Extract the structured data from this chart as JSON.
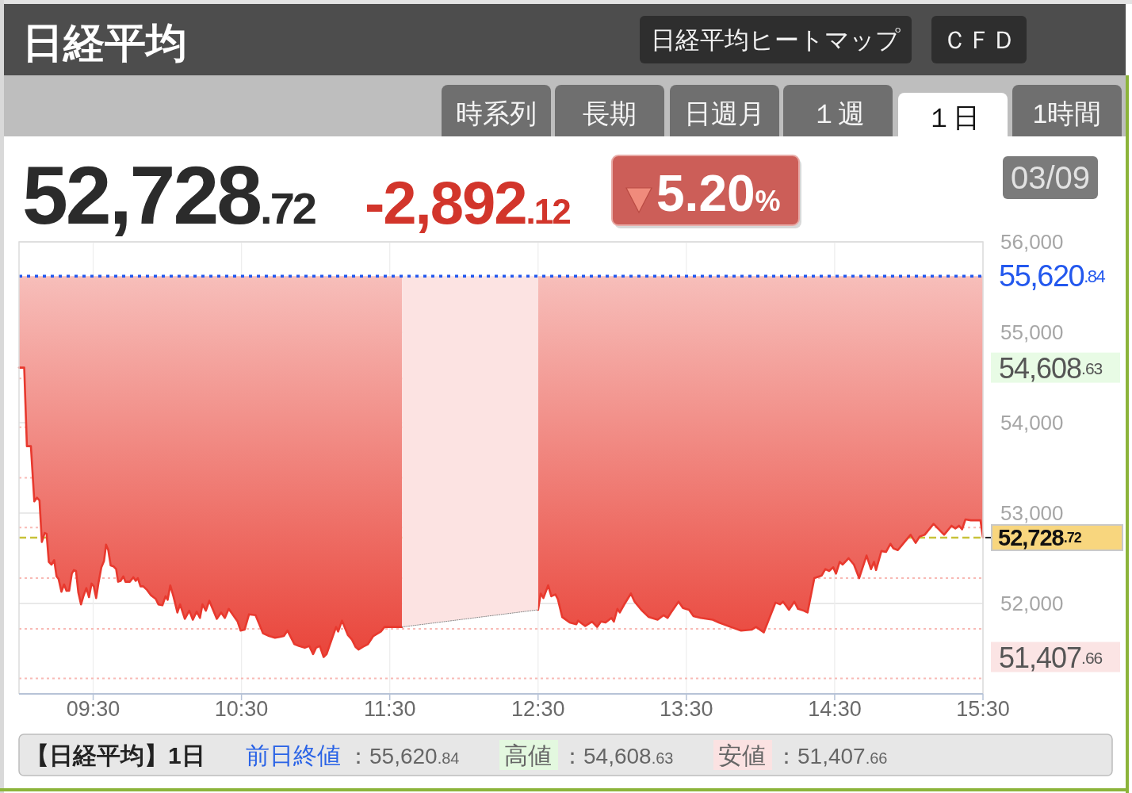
{
  "chart_data": {
    "type": "line",
    "title": "日経平均",
    "annotations": [
      "日経平均ヒートマップ",
      "ＣＦＤ",
      "時系列",
      "長期",
      "日週月",
      "１週",
      "１日",
      "1時間",
      "52,728.72",
      "-2,892.12",
      "5.20%",
      "03/09",
      "【日経平均】1日",
      "前日終値",
      "：55,620.84",
      "高値",
      "：54,608.63",
      "安値",
      "：51,407.66",
      "54,608.63",
      "51,407.66"
    ],
    "series": [
      {
        "color": "#e8392e",
        "x": [
          9.0,
          9.035,
          9.053,
          9.08,
          9.103,
          9.121,
          9.138,
          9.154,
          9.173,
          9.186,
          9.201,
          9.219,
          9.237,
          9.253,
          9.267,
          9.286,
          9.304,
          9.32,
          9.338,
          9.356,
          9.37,
          9.384,
          9.4,
          9.418,
          9.436,
          9.454,
          9.472,
          9.489,
          9.504,
          9.52,
          9.537,
          9.555,
          9.573,
          9.587,
          9.602,
          9.618,
          9.637,
          9.655,
          9.668,
          9.685,
          9.703,
          9.718,
          9.747,
          9.771,
          9.787,
          9.801,
          9.819,
          9.837,
          9.863,
          9.89,
          9.922,
          9.94,
          9.967,
          9.988,
          10.002,
          10.02,
          10.041,
          10.068,
          10.086,
          10.118,
          10.148,
          10.172,
          10.198,
          10.22,
          10.237,
          10.26,
          10.283,
          10.334,
          10.363,
          10.388,
          10.414,
          10.474,
          10.494,
          10.521,
          10.551,
          10.595,
          10.645,
          10.686,
          10.726,
          10.756,
          10.786,
          10.81,
          10.857,
          10.887,
          10.927,
          10.957,
          10.983,
          11.003,
          11.028,
          11.054,
          11.074,
          11.108,
          11.138,
          11.152,
          11.178,
          11.218,
          11.245,
          11.269,
          11.289,
          11.319,
          11.353,
          11.389,
          11.44,
          11.465,
          11.583,
          12.0,
          12.5,
          12.518,
          12.536,
          12.568,
          12.589,
          12.617,
          12.633,
          12.663,
          12.713,
          12.758,
          12.77,
          12.818,
          12.864,
          12.898,
          12.924,
          12.955,
          12.995,
          13.011,
          13.035,
          13.051,
          13.085,
          13.126,
          13.151,
          13.196,
          13.246,
          13.306,
          13.347,
          13.373,
          13.397,
          13.447,
          13.477,
          13.518,
          13.548,
          13.598,
          13.678,
          13.719,
          13.799,
          13.869,
          13.94,
          13.97,
          14.022,
          14.101,
          14.132,
          14.152,
          14.192,
          14.228,
          14.253,
          14.292,
          14.317,
          14.363,
          14.413,
          14.437,
          14.463,
          14.49,
          14.509,
          14.534,
          14.554,
          14.594,
          14.63,
          14.665,
          14.715,
          14.745,
          14.765,
          14.779,
          14.815,
          14.846,
          14.876,
          14.896,
          14.926,
          14.976,
          15.012,
          15.046,
          15.073,
          15.107,
          15.167,
          15.238,
          15.288,
          15.314,
          15.338,
          15.359,
          15.382,
          15.418,
          15.483,
          15.5
        ],
        "values": [
          54608.63,
          54608.63,
          53740,
          53740,
          53130,
          53170,
          53140,
          52680,
          52780,
          52770,
          52460,
          52430,
          52480,
          52300,
          52270,
          52130,
          52210,
          52140,
          52140,
          52330,
          52370,
          52360,
          52120,
          51990,
          52090,
          52170,
          52070,
          52220,
          52190,
          52060,
          52240,
          52400,
          52470,
          52650,
          52590,
          52420,
          52410,
          52380,
          52240,
          52250,
          52300,
          52240,
          52240,
          52290,
          52250,
          52280,
          52190,
          52190,
          52150,
          52090,
          52050,
          51990,
          51980,
          52080,
          52040,
          52200,
          52080,
          51900,
          51990,
          51830,
          51920,
          51820,
          51910,
          51840,
          51990,
          51920,
          52030,
          51830,
          51900,
          51840,
          51940,
          51800,
          51700,
          51710,
          51880,
          51870,
          51670,
          51640,
          51620,
          51630,
          51640,
          51700,
          51550,
          51530,
          51510,
          51530,
          51440,
          51510,
          51530,
          51407.66,
          51440,
          51600,
          51740,
          51690,
          51810,
          51650,
          51600,
          51520,
          51490,
          51520,
          51550,
          51640,
          51690,
          51740,
          51740,
          null,
          51930,
          52110,
          52060,
          52200,
          52080,
          52100,
          52050,
          51850,
          51790,
          51770,
          51810,
          51750,
          51800,
          51740,
          51800,
          51790,
          51840,
          51800,
          51940,
          51900,
          52000,
          52110,
          52020,
          51930,
          51850,
          51820,
          51870,
          51840,
          51900,
          52020,
          51950,
          51930,
          51860,
          51840,
          51820,
          51790,
          51740,
          51700,
          51710,
          51740,
          51680,
          52010,
          51990,
          52020,
          51930,
          52020,
          51940,
          51920,
          51900,
          52280,
          52310,
          52380,
          52360,
          52400,
          52330,
          52460,
          52430,
          52500,
          52430,
          52280,
          52530,
          52380,
          52460,
          52370,
          52580,
          52570,
          52660,
          52610,
          52590,
          52690,
          52760,
          52670,
          52740,
          52760,
          52880,
          52760,
          52860,
          52830,
          52860,
          52820,
          52930,
          52920,
          52920,
          52730
        ],
        "lower": [
          54608.63,
          54608.63,
          53740,
          53740,
          53130,
          53170,
          53140,
          52680,
          52780,
          52770,
          52460,
          52430,
          52480,
          52300,
          52270,
          52130,
          52210,
          52140,
          52140,
          52330,
          52370,
          52360,
          52120,
          51990,
          52090,
          52170,
          52070,
          52220,
          52190,
          52060,
          52240,
          52400,
          52470,
          52650,
          52590,
          52420,
          52410,
          52380,
          52240,
          52250,
          52300,
          52240,
          52240,
          52290,
          52250,
          52280,
          52190,
          52190,
          52150,
          52090,
          52050,
          51990,
          51980,
          52080,
          52040,
          52200,
          52080,
          51900,
          51990,
          51830,
          51920,
          51820,
          51910,
          51840,
          51990,
          51920,
          52030,
          51830,
          51900,
          51840,
          51940,
          51800,
          51700,
          51710,
          51880,
          51870,
          51670,
          51640,
          51620,
          51630,
          51640,
          51700,
          51550,
          51530,
          51510,
          51530,
          51440,
          51510,
          51530,
          51407.66,
          51440,
          51600,
          51740,
          51690,
          51810,
          51650,
          51600,
          51520,
          51490,
          51520,
          51550,
          51640,
          51690,
          51740,
          51740,
          null,
          51930,
          52110,
          52060,
          52200,
          52080,
          52100,
          52050,
          51850,
          51790,
          51770,
          51810,
          51750,
          51800,
          51740,
          51800,
          51790,
          51840,
          51800,
          51940,
          51900,
          52000,
          52110,
          52020,
          51930,
          51850,
          51820,
          51870,
          51840,
          51900,
          52020,
          51950,
          51930,
          51860,
          51840,
          51820,
          51790,
          51740,
          51700,
          51710,
          51740,
          51680,
          52010,
          51990,
          52020,
          51930,
          52020,
          51940,
          51920,
          51900,
          52280,
          52310,
          52380,
          52360,
          52400,
          52330,
          52460,
          52430,
          52500,
          52430,
          52280,
          52530,
          52380,
          52460,
          52370,
          52580,
          52570,
          52660,
          52610,
          52590,
          52690,
          52760,
          52670,
          52740,
          52760,
          52880,
          52760,
          52860,
          52830,
          52860,
          52820,
          52930,
          52920,
          52920,
          52730
        ],
        "upper": [
          55620.84,
          55620.84,
          55620.84,
          55620.84,
          55620.84,
          55620.84,
          55620.84,
          55620.84,
          55620.84,
          55620.84,
          55620.84,
          55620.84,
          55620.84,
          55620.84,
          55620.84,
          55620.84,
          55620.84,
          55620.84,
          55620.84,
          55620.84,
          55620.84,
          55620.84,
          55620.84,
          55620.84,
          55620.84,
          55620.84,
          55620.84,
          55620.84,
          55620.84,
          55620.84,
          55620.84,
          55620.84,
          55620.84,
          55620.84,
          55620.84,
          55620.84,
          55620.84,
          55620.84,
          55620.84,
          55620.84,
          55620.84,
          55620.84,
          55620.84,
          55620.84,
          55620.84,
          55620.84,
          55620.84,
          55620.84,
          55620.84,
          55620.84,
          55620.84,
          55620.84,
          55620.84,
          55620.84,
          55620.84,
          55620.84,
          55620.84,
          55620.84,
          55620.84,
          55620.84,
          55620.84,
          55620.84,
          55620.84,
          55620.84,
          55620.84,
          55620.84,
          55620.84,
          55620.84,
          55620.84,
          55620.84,
          55620.84,
          55620.84,
          55620.84,
          55620.84,
          55620.84,
          55620.84,
          55620.84,
          55620.84,
          55620.84,
          55620.84,
          55620.84,
          55620.84,
          55620.84,
          55620.84,
          55620.84,
          55620.84,
          55620.84,
          55620.84,
          55620.84,
          55620.84,
          55620.84,
          55620.84,
          55620.84,
          55620.84,
          55620.84,
          55620.84,
          55620.84,
          55620.84,
          55620.84,
          55620.84,
          55620.84,
          55620.84,
          55620.84,
          55620.84,
          55620.84,
          null,
          55620.84,
          55620.84,
          55620.84,
          55620.84,
          55620.84,
          55620.84,
          55620.84,
          55620.84,
          55620.84,
          55620.84,
          55620.84,
          55620.84,
          55620.84,
          55620.84,
          55620.84,
          55620.84,
          55620.84,
          55620.84,
          55620.84,
          55620.84,
          55620.84,
          55620.84,
          55620.84,
          55620.84,
          55620.84,
          55620.84,
          55620.84,
          55620.84,
          55620.84,
          55620.84,
          55620.84,
          55620.84,
          55620.84,
          55620.84,
          55620.84,
          55620.84,
          55620.84,
          55620.84,
          55620.84,
          55620.84,
          55620.84,
          55620.84,
          55620.84,
          55620.84,
          55620.84,
          55620.84,
          55620.84,
          55620.84,
          55620.84,
          55620.84,
          55620.84,
          55620.84,
          55620.84,
          55620.84,
          55620.84,
          55620.84,
          55620.84,
          55620.84,
          55620.84,
          55620.84,
          55620.84,
          55620.84,
          55620.84,
          55620.84,
          55620.84,
          55620.84,
          55620.84,
          55620.84,
          55620.84,
          55620.84,
          55620.84,
          55620.84,
          55620.84,
          55620.84,
          55620.84,
          55620.84,
          55620.84,
          55620.84,
          55620.84,
          55620.84,
          55620.84,
          55620.84,
          55620.84,
          55620.84
        ]
      },
      {
        "color": "#8a8a8a",
        "line_style": "dotted",
        "x": [
          11.583,
          12.5
        ],
        "values": [
          51740,
          51930
        ],
        "lower": [
          51740,
          51930
        ],
        "upper": [
          55620.84,
          55620.84
        ]
      }
    ],
    "xlim": [
      9,
      15.5
    ],
    "xticks": [
      {
        "value": 9.5,
        "label": "09:30"
      },
      {
        "value": 10.5,
        "label": "10:30"
      },
      {
        "value": 11.5,
        "label": "11:30"
      },
      {
        "value": 12.5,
        "label": "12:30"
      },
      {
        "value": 13.5,
        "label": "13:30"
      },
      {
        "value": 14.5,
        "label": "14:30"
      },
      {
        "value": 15.5,
        "label": "15:30"
      }
    ],
    "ylim": [
      51000,
      56000
    ],
    "yticks": [
      {
        "value": 52000,
        "label": "52,000"
      },
      {
        "value": 53000,
        "label": "53,000"
      },
      {
        "value": 54000,
        "label": "54,000"
      },
      {
        "value": 55000,
        "label": "55,000"
      },
      {
        "value": 56000,
        "label": "56,000"
      }
    ],
    "ref_lines": [
      {
        "axis": "y",
        "value": 55620.84,
        "label": "55,620.84",
        "color": "#2358ee",
        "line_style": "dotted"
      },
      {
        "axis": "y",
        "value": 52728.72,
        "label": "52,728.72",
        "color": "#c8c23a",
        "line_style": "dashed"
      },
      {
        "axis": "y",
        "value": 54490,
        "color": "#f8bab5",
        "line_style": "dotted"
      },
      {
        "axis": "y",
        "value": 53950,
        "color": "#f8bab5",
        "line_style": "dotted"
      },
      {
        "axis": "y",
        "value": 53390,
        "color": "#f8bab5",
        "line_style": "dotted"
      },
      {
        "axis": "y",
        "value": 52840,
        "color": "#f8bab5",
        "line_style": "dotted"
      },
      {
        "axis": "y",
        "value": 52280,
        "color": "#f8bab5",
        "line_style": "dotted"
      },
      {
        "axis": "y",
        "value": 51720,
        "color": "#f8bab5",
        "line_style": "dotted"
      },
      {
        "axis": "y",
        "value": 51170,
        "color": "#f8bab5",
        "line_style": "dotted"
      }
    ],
    "grid": true
  }
}
